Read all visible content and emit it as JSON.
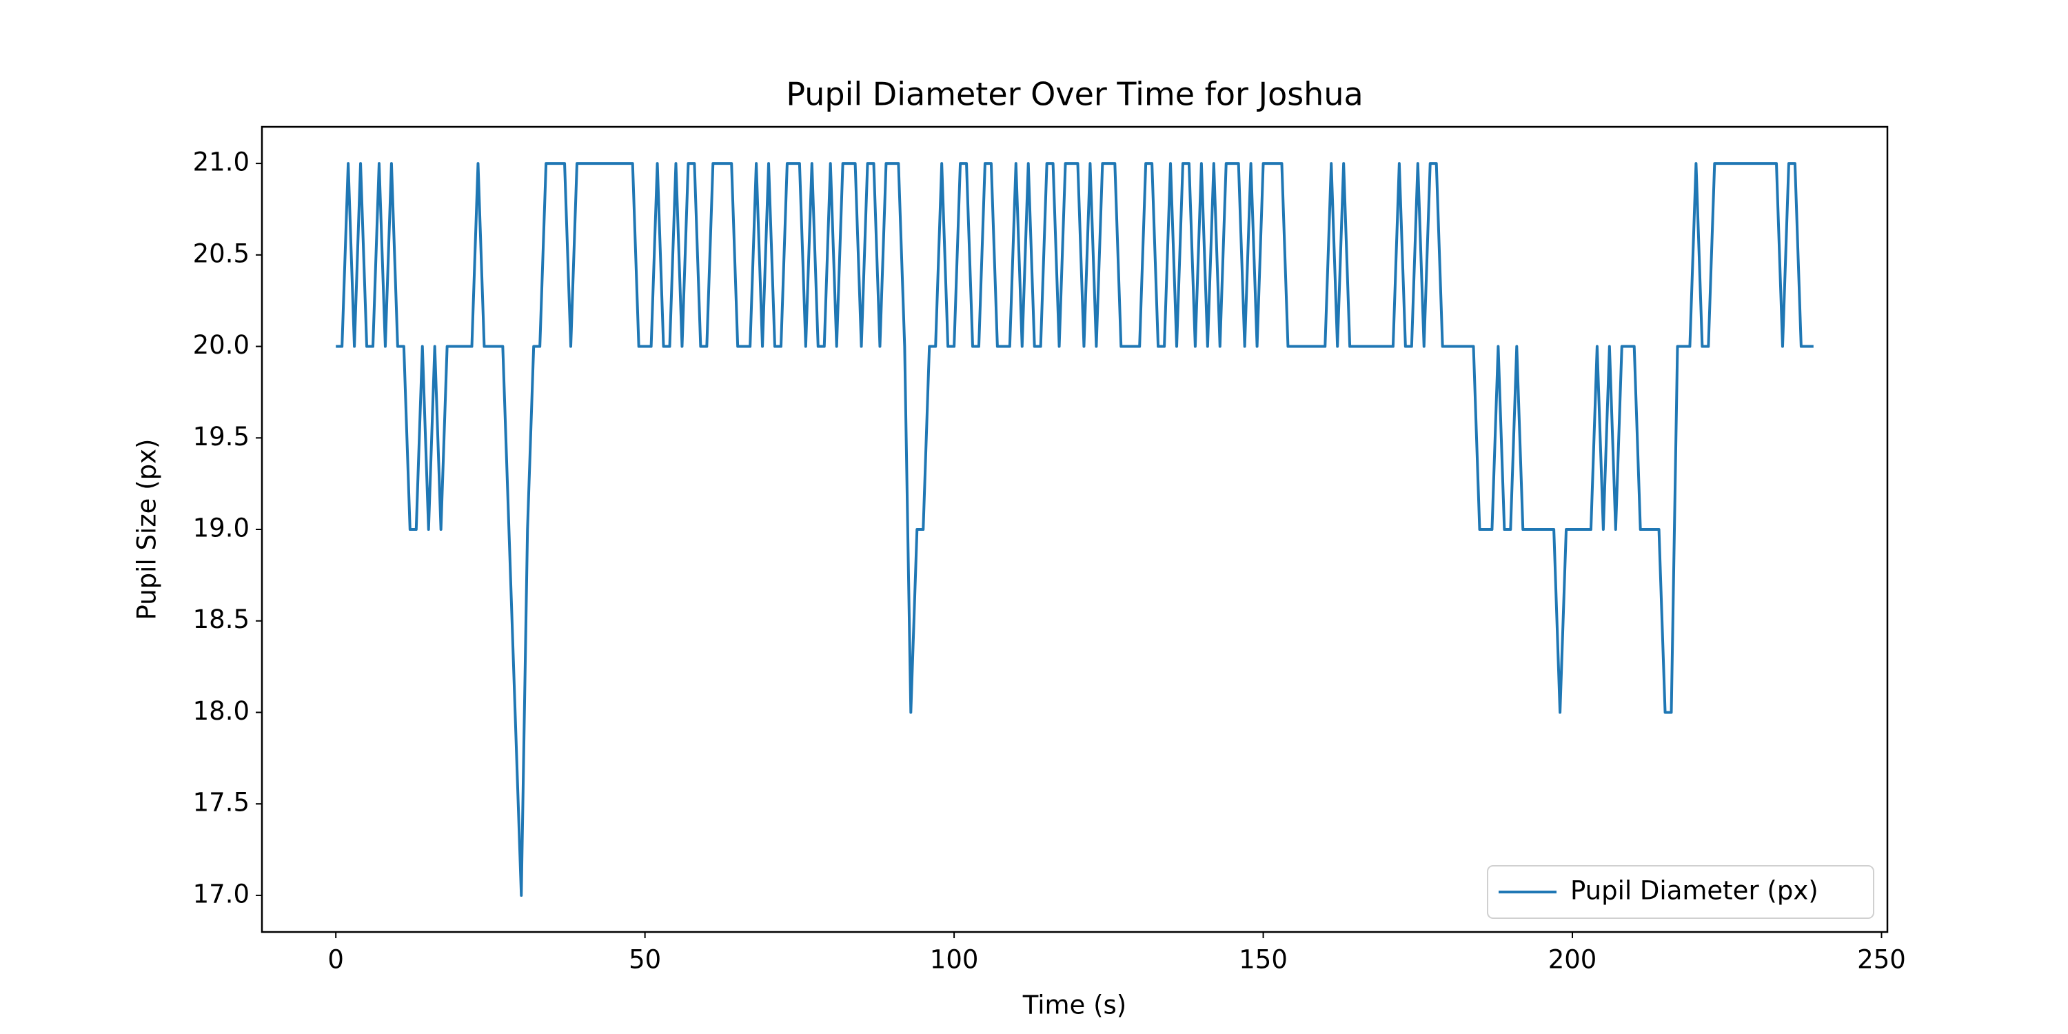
{
  "chart_data": {
    "type": "line",
    "title": "Pupil Diameter Over Time for Joshua",
    "x_label": "Time (s)",
    "y_label": "Pupil Size (px)",
    "x": [
      0,
      1,
      2,
      3,
      4,
      5,
      6,
      7,
      8,
      9,
      10,
      11,
      12,
      13,
      14,
      15,
      16,
      17,
      18,
      19,
      20,
      21,
      22,
      23,
      24,
      25,
      26,
      27,
      28,
      29,
      30,
      31,
      32,
      33,
      34,
      35,
      36,
      37,
      38,
      39,
      40,
      41,
      42,
      43,
      44,
      45,
      46,
      47,
      48,
      49,
      50,
      51,
      52,
      53,
      54,
      55,
      56,
      57,
      58,
      59,
      60,
      61,
      62,
      63,
      64,
      65,
      66,
      67,
      68,
      69,
      70,
      71,
      72,
      73,
      74,
      75,
      76,
      77,
      78,
      79,
      80,
      81,
      82,
      83,
      84,
      85,
      86,
      87,
      88,
      89,
      90,
      91,
      92,
      93,
      94,
      95,
      96,
      97,
      98,
      99,
      100,
      101,
      102,
      103,
      104,
      105,
      106,
      107,
      108,
      109,
      110,
      111,
      112,
      113,
      114,
      115,
      116,
      117,
      118,
      119,
      120,
      121,
      122,
      123,
      124,
      125,
      126,
      127,
      128,
      129,
      130,
      131,
      132,
      133,
      134,
      135,
      136,
      137,
      138,
      139,
      140,
      141,
      142,
      143,
      144,
      145,
      146,
      147,
      148,
      149,
      150,
      151,
      152,
      153,
      154,
      155,
      156,
      157,
      158,
      159,
      160,
      161,
      162,
      163,
      164,
      165,
      166,
      167,
      168,
      169,
      170,
      171,
      172,
      173,
      174,
      175,
      176,
      177,
      178,
      179,
      180,
      181,
      182,
      183,
      184,
      185,
      186,
      187,
      188,
      189,
      190,
      191,
      192,
      193,
      194,
      195,
      196,
      197,
      198,
      199,
      200,
      201,
      202,
      203,
      204,
      205,
      206,
      207,
      208,
      209,
      210,
      211,
      212,
      213,
      214,
      215,
      216,
      217,
      218,
      219,
      220,
      221,
      222,
      223,
      224,
      225,
      226,
      227,
      228,
      229,
      230,
      231,
      232,
      233,
      234,
      235,
      236,
      237,
      238,
      239
    ],
    "series": [
      {
        "name": "Pupil Diameter (px)",
        "color": "#1f77b4",
        "values": [
          20,
          20,
          21,
          20,
          21,
          20,
          20,
          21,
          20,
          21,
          20,
          20,
          19,
          19,
          20,
          19,
          20,
          19,
          20,
          20,
          20,
          20,
          20,
          21,
          20,
          20,
          20,
          20,
          19,
          18,
          17,
          19,
          20,
          20,
          21,
          21,
          21,
          21,
          20,
          21,
          21,
          21,
          21,
          21,
          21,
          21,
          21,
          21,
          21,
          20,
          20,
          20,
          21,
          20,
          20,
          21,
          20,
          21,
          21,
          20,
          20,
          21,
          21,
          21,
          21,
          20,
          20,
          20,
          21,
          20,
          21,
          20,
          20,
          21,
          21,
          21,
          20,
          21,
          20,
          20,
          21,
          20,
          21,
          21,
          21,
          20,
          21,
          21,
          20,
          21,
          21,
          21,
          20,
          18,
          19,
          19,
          20,
          20,
          21,
          20,
          20,
          21,
          21,
          20,
          20,
          21,
          21,
          20,
          20,
          20,
          21,
          20,
          21,
          20,
          20,
          21,
          21,
          20,
          21,
          21,
          21,
          20,
          21,
          20,
          21,
          21,
          21,
          20,
          20,
          20,
          20,
          21,
          21,
          20,
          20,
          21,
          20,
          21,
          21,
          20,
          21,
          20,
          21,
          20,
          21,
          21,
          21,
          20,
          21,
          20,
          21,
          21,
          21,
          21,
          20,
          20,
          20,
          20,
          20,
          20,
          20,
          21,
          20,
          21,
          20,
          20,
          20,
          20,
          20,
          20,
          20,
          20,
          21,
          20,
          20,
          21,
          20,
          21,
          21,
          20,
          20,
          20,
          20,
          20,
          20,
          19,
          19,
          19,
          20,
          19,
          19,
          20,
          19,
          19,
          19,
          19,
          19,
          19,
          18,
          19,
          19,
          19,
          19,
          19,
          20,
          19,
          20,
          19,
          20,
          20,
          20,
          19,
          19,
          19,
          19,
          18,
          18,
          20,
          20,
          20,
          21,
          20,
          20,
          21,
          21,
          21,
          21,
          21,
          21,
          21,
          21,
          21,
          21,
          21,
          20,
          21,
          21,
          20,
          20,
          20
        ]
      }
    ],
    "xlim": [
      -11.95,
      250.95
    ],
    "xticks": [
      0,
      50,
      100,
      150,
      200,
      250
    ],
    "ylim": [
      16.8,
      21.2
    ],
    "yticks": [
      {
        "value": 17,
        "label": "17.0"
      },
      17.5,
      {
        "value": 18,
        "label": "18.0"
      },
      18.5,
      {
        "value": 19,
        "label": "19.0"
      },
      19.5,
      {
        "value": 20,
        "label": "20.0"
      },
      20.5,
      {
        "value": 21,
        "label": "21.0"
      }
    ],
    "grid": false,
    "legend": "lower right"
  }
}
